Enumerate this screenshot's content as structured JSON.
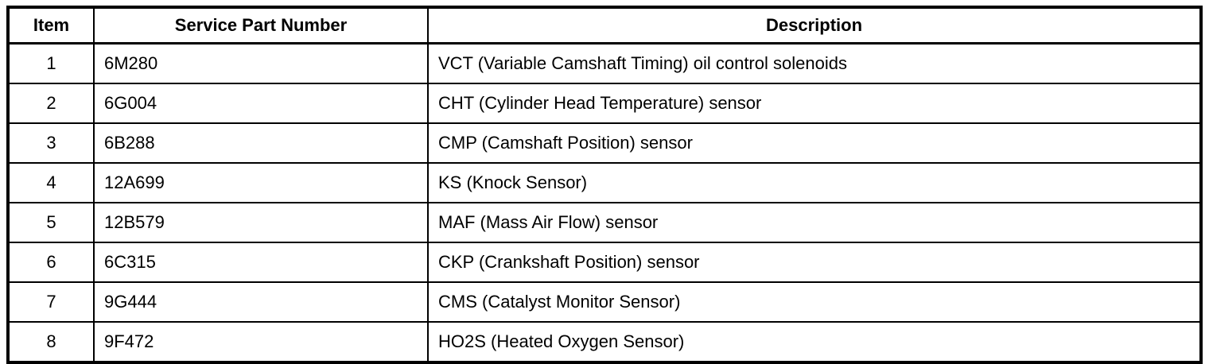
{
  "table": {
    "columns": {
      "item": "Item",
      "part_number": "Service Part Number",
      "description": "Description"
    },
    "rows": [
      {
        "item": "1",
        "part": "6M280",
        "description": "VCT (Variable Camshaft Timing) oil control solenoids"
      },
      {
        "item": "2",
        "part": "6G004",
        "description": "CHT (Cylinder Head Temperature) sensor"
      },
      {
        "item": "3",
        "part": "6B288",
        "description": "CMP (Camshaft Position) sensor"
      },
      {
        "item": "4",
        "part": "12A699",
        "description": "KS (Knock Sensor)"
      },
      {
        "item": "5",
        "part": "12B579",
        "description": "MAF (Mass Air Flow) sensor"
      },
      {
        "item": "6",
        "part": "6C315",
        "description": "CKP (Crankshaft Position) sensor"
      },
      {
        "item": "7",
        "part": "9G444",
        "description": "CMS (Catalyst Monitor Sensor)"
      },
      {
        "item": "8",
        "part": "9F472",
        "description": "HO2S (Heated Oxygen Sensor)"
      }
    ],
    "border_color": "#000000",
    "background_color": "#ffffff"
  }
}
